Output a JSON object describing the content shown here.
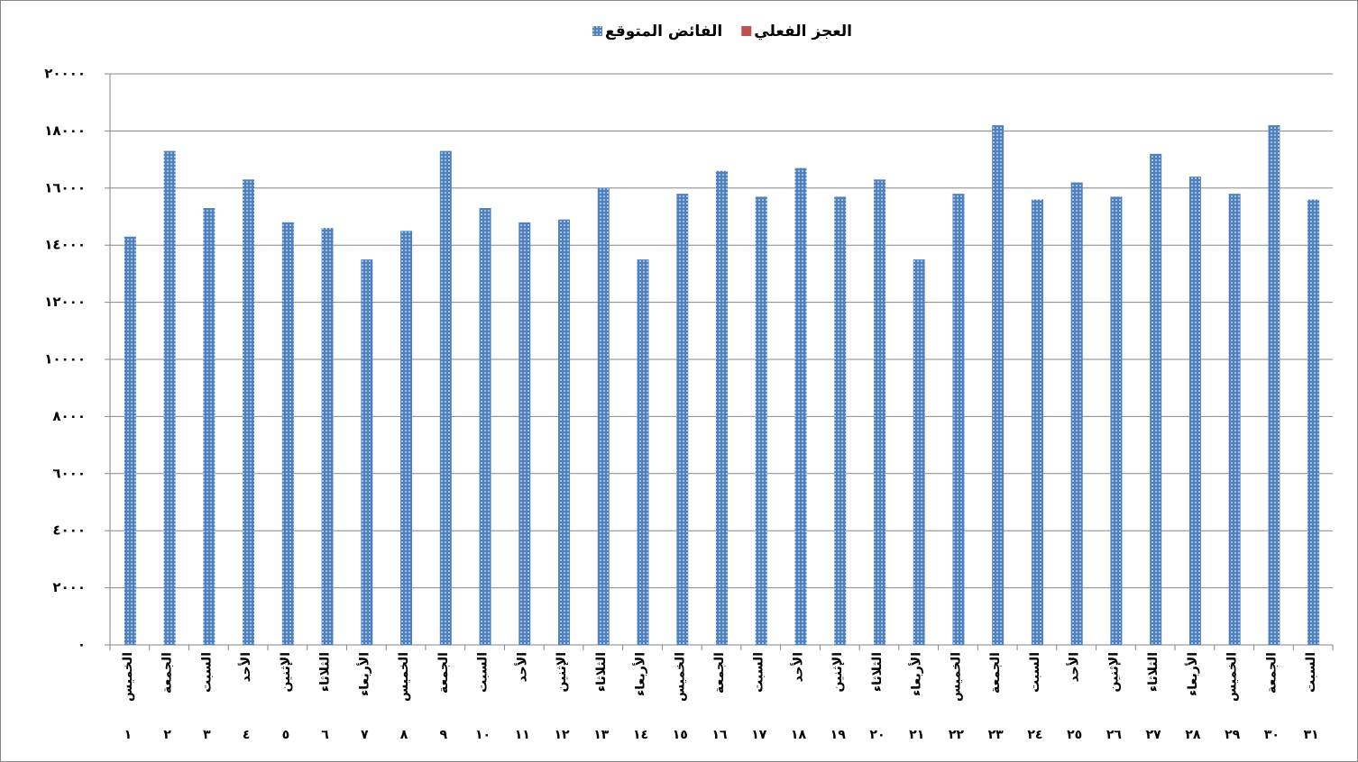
{
  "chart_data": {
    "type": "bar",
    "series": [
      {
        "name": "العجز الفعلي",
        "color": "#c0504d",
        "values": [
          0,
          0,
          0,
          0,
          0,
          0,
          0,
          0,
          0,
          0,
          0,
          0,
          0,
          0,
          0,
          0,
          0,
          0,
          0,
          0,
          0,
          0,
          0,
          0,
          0,
          0,
          0,
          0,
          0,
          0,
          0
        ]
      },
      {
        "name": "الفائض المتوقع",
        "color": "#4f81bd",
        "values": [
          14300,
          17300,
          15300,
          16300,
          14800,
          14600,
          13500,
          14500,
          17300,
          15300,
          14800,
          14900,
          16000,
          13500,
          15800,
          16600,
          15700,
          16700,
          15700,
          16300,
          13500,
          15800,
          18200,
          15600,
          16200,
          15700,
          17200,
          16400,
          15800,
          18200,
          15600
        ]
      }
    ],
    "categories": [
      "الخميس",
      "الجمعة",
      "السبت",
      "الأحد",
      "الإثنين",
      "الثلاثاء",
      "الأربعاء",
      "الخميس",
      "الجمعة",
      "السبت",
      "الأحد",
      "الإثنين",
      "الثلاثاء",
      "الأربعاء",
      "الخميس",
      "الجمعة",
      "السبت",
      "الأحد",
      "الإثنين",
      "الثلاثاء",
      "الأربعاء",
      "الخميس",
      "الجمعة",
      "السبت",
      "الأحد",
      "الإثنين",
      "الثلاثاء",
      "الأربعاء",
      "الخميس",
      "الجمعة",
      "السبت"
    ],
    "day_numbers": [
      "١",
      "٢",
      "٣",
      "٤",
      "٥",
      "٦",
      "٧",
      "٨",
      "٩",
      "١٠",
      "١١",
      "١٢",
      "١٣",
      "١٤",
      "١٥",
      "١٦",
      "١٧",
      "١٨",
      "١٩",
      "٢٠",
      "٢١",
      "٢٢",
      "٢٣",
      "٢٤",
      "٢٥",
      "٢٦",
      "٢٧",
      "٢٨",
      "٢٩",
      "٣٠",
      "٣١"
    ],
    "ylim": [
      0,
      20000
    ],
    "yticks": [
      {
        "value": 0,
        "label": "٠"
      },
      {
        "value": 2000,
        "label": "٢٠٠٠"
      },
      {
        "value": 4000,
        "label": "٤٠٠٠"
      },
      {
        "value": 6000,
        "label": "٦٠٠٠"
      },
      {
        "value": 8000,
        "label": "٨٠٠٠"
      },
      {
        "value": 10000,
        "label": "١٠٠٠٠"
      },
      {
        "value": 12000,
        "label": "١٢٠٠٠"
      },
      {
        "value": 14000,
        "label": "١٤٠٠٠"
      },
      {
        "value": 16000,
        "label": "١٦٠٠٠"
      },
      {
        "value": 18000,
        "label": "١٨٠٠٠"
      },
      {
        "value": 20000,
        "label": "٢٠٠٠٠"
      }
    ],
    "grid": true
  }
}
